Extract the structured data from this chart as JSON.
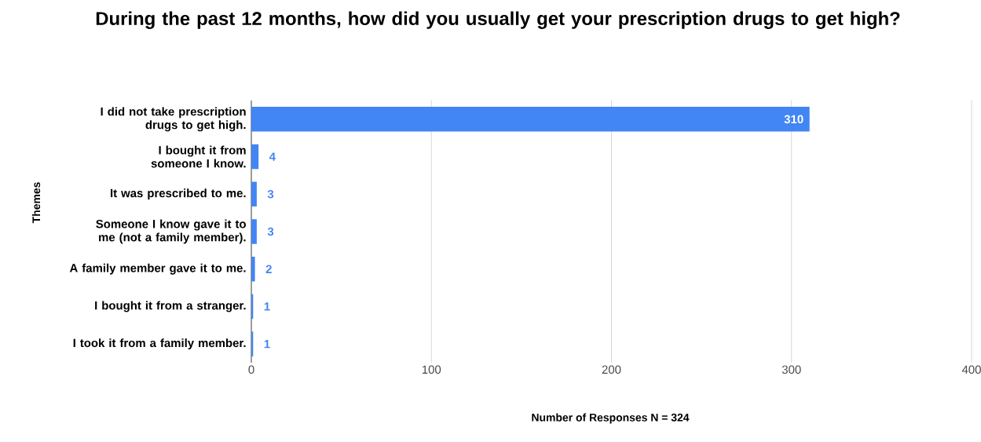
{
  "chart_data": {
    "type": "bar",
    "orientation": "horizontal",
    "title": "During the past 12 months, how did you usually get your prescription drugs to get high?",
    "categories": [
      "I did not take prescription drugs to get high.",
      "I bought it from someone I know.",
      "It was prescribed to me.",
      "Someone I know gave it to me (not a family member).",
      "A family member gave it to me.",
      "I bought it from a stranger.",
      "I took it from a family member."
    ],
    "values": [
      310,
      4,
      3,
      3,
      2,
      1,
      1
    ],
    "color": "#4285f4",
    "xlim": [
      0,
      400
    ],
    "xticks": [
      0,
      100,
      200,
      300,
      400
    ],
    "xlabel": "Number of Responses   N = 324",
    "ylabel": "Themes",
    "grid": "x",
    "data_labels": true
  }
}
